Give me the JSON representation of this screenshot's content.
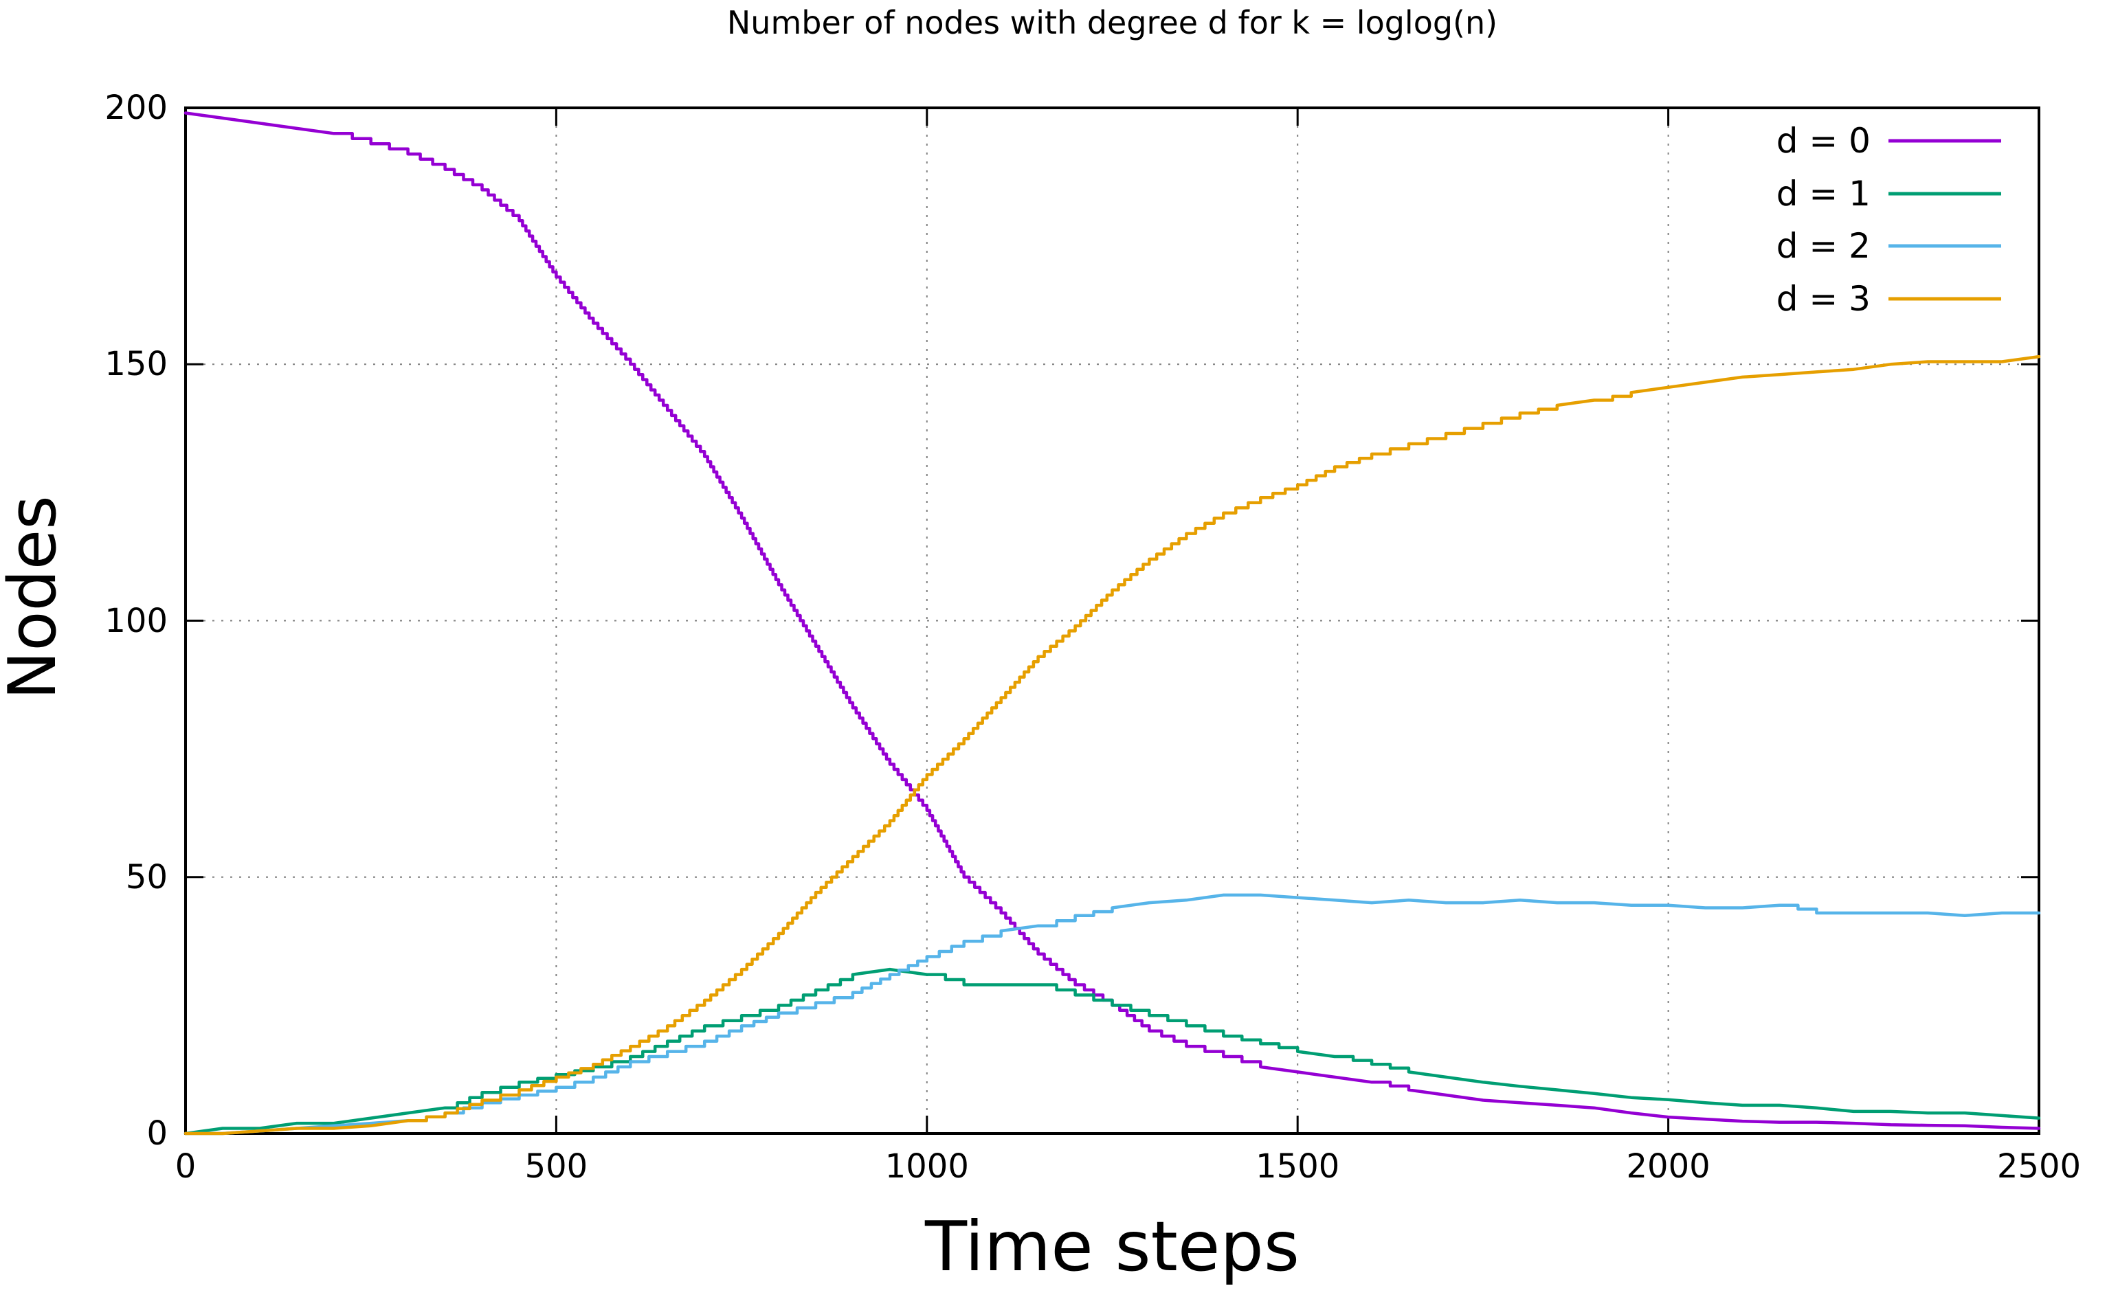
{
  "chart_data": {
    "type": "line",
    "title": "Number of nodes with degree d for k = loglog(n)",
    "xlabel": "Time steps",
    "ylabel": "Nodes",
    "xlim": [
      0,
      2500
    ],
    "ylim": [
      0,
      200
    ],
    "xticks": [
      0,
      500,
      1000,
      1500,
      2000,
      2500
    ],
    "yticks": [
      0,
      50,
      100,
      150,
      200
    ],
    "grid": true,
    "legend_position": "top-right-inside",
    "line_style": "stairstep",
    "background_color": "#ffffff",
    "axis_color": "#000000",
    "grid_color": "#7f7f7f",
    "x": [
      0,
      50,
      100,
      150,
      200,
      250,
      300,
      350,
      400,
      450,
      500,
      550,
      600,
      650,
      700,
      750,
      800,
      850,
      900,
      950,
      1000,
      1050,
      1100,
      1150,
      1200,
      1250,
      1300,
      1350,
      1400,
      1450,
      1500,
      1550,
      1600,
      1650,
      1700,
      1750,
      1800,
      1850,
      1900,
      1950,
      2000,
      2050,
      2100,
      2150,
      2200,
      2250,
      2300,
      2350,
      2400,
      2450,
      2500
    ],
    "series": [
      {
        "name": "d = 0",
        "color": "#9400d3",
        "values": [
          199,
          198,
          197,
          196,
          195,
          193,
          191,
          188,
          184,
          178,
          167,
          158,
          150,
          141,
          132,
          120,
          107,
          95,
          83,
          72,
          63,
          50,
          43,
          35,
          29,
          25,
          20,
          17,
          15,
          13,
          12,
          11,
          10,
          8.5,
          7.5,
          6.5,
          6,
          5.5,
          5,
          4,
          3.2,
          2.8,
          2.4,
          2.2,
          2.2,
          2,
          1.7,
          1.6,
          1.5,
          1.2,
          1
        ]
      },
      {
        "name": "d = 1",
        "color": "#009e73",
        "values": [
          0,
          1,
          1,
          2,
          2,
          3,
          4,
          5,
          8,
          10,
          11.5,
          13,
          15,
          18,
          21,
          23,
          25,
          28,
          31,
          32,
          31,
          29,
          29,
          29,
          27,
          25,
          23,
          21,
          19,
          17.5,
          16,
          15,
          13.5,
          12,
          11,
          10,
          9.2,
          8.5,
          7.8,
          7,
          6.6,
          6,
          5.5,
          5.5,
          5,
          4.3,
          4.3,
          4,
          4,
          3.5,
          3
        ]
      },
      {
        "name": "d = 2",
        "color": "#56b4e9",
        "values": [
          0,
          0,
          0.5,
          1,
          1.5,
          2,
          2.5,
          4,
          6,
          7.5,
          9,
          11,
          14,
          16,
          18,
          21,
          23.5,
          25.5,
          27.5,
          31,
          34.5,
          37.5,
          39.5,
          40.5,
          42.5,
          44,
          45,
          45.5,
          46.5,
          46.5,
          46,
          45.5,
          45,
          45.5,
          45,
          45,
          45.5,
          45,
          45,
          44.5,
          44.5,
          44,
          44,
          44.5,
          43,
          43,
          43,
          43,
          42.5,
          43,
          43
        ]
      },
      {
        "name": "d = 3",
        "color": "#e69f00",
        "values": [
          0,
          0,
          0.5,
          1,
          1,
          1.5,
          2.5,
          4,
          6.5,
          8.5,
          11,
          13.5,
          17,
          21,
          26,
          32,
          39,
          47,
          54,
          61,
          70,
          77,
          85,
          93,
          99,
          106,
          112,
          117,
          121,
          124,
          126.5,
          130,
          132.5,
          134.5,
          136.5,
          138.5,
          140.5,
          142,
          143,
          144.5,
          145.5,
          146.5,
          147.5,
          148,
          148.5,
          149,
          150,
          150.5,
          150.5,
          150.5,
          151.5
        ]
      }
    ]
  }
}
